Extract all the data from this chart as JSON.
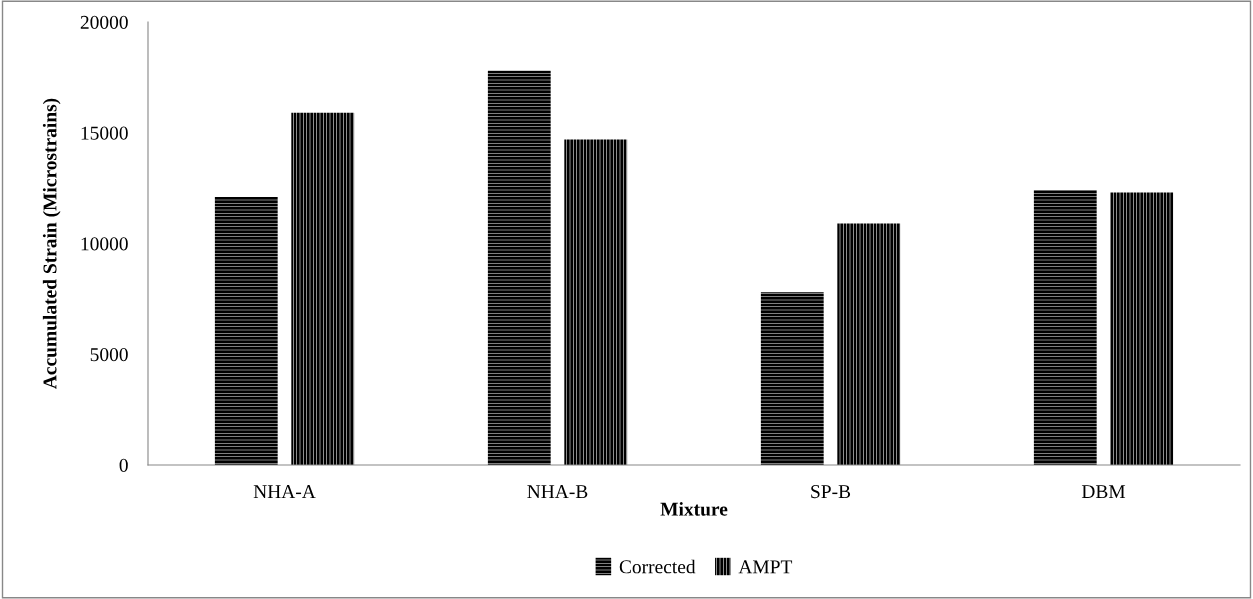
{
  "chart_data": {
    "type": "bar",
    "xlabel": "Mixture",
    "ylabel": "Accumulated Strain (Microstrains)",
    "categories": [
      "NHA-A",
      "NHA-B",
      "SP-B",
      "DBM"
    ],
    "series": [
      {
        "name": "Corrected",
        "color": "#000000",
        "values": [
          12100,
          17800,
          7800,
          12400
        ]
      },
      {
        "name": "AMPT",
        "color": "#000000",
        "values": [
          15900,
          14700,
          10900,
          12300
        ]
      }
    ],
    "ylim": [
      0,
      20000
    ],
    "yticks": [
      0,
      5000,
      10000,
      15000,
      20000
    ],
    "grid": false,
    "legend": "bottom"
  }
}
